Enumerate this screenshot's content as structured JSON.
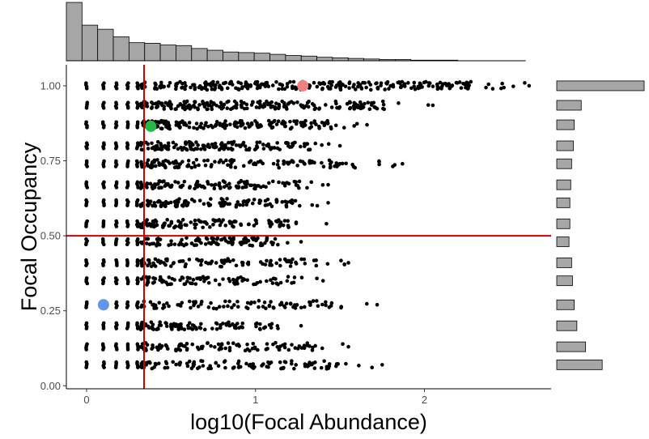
{
  "chart_data": {
    "type": "scatter",
    "title": "",
    "xlabel": "log10(Focal Abundance)",
    "ylabel": "Focal Occupancy",
    "xlim": [
      -0.12,
      2.75
    ],
    "ylim": [
      -0.01,
      1.07
    ],
    "x_ticks": [
      {
        "value": 0,
        "label": "0"
      },
      {
        "value": 1,
        "label": "1"
      },
      {
        "value": 2,
        "label": "2"
      }
    ],
    "y_ticks": [
      {
        "value": 0.0,
        "label": "0.00"
      },
      {
        "value": 0.25,
        "label": "0.25"
      },
      {
        "value": 0.5,
        "label": "0.50"
      },
      {
        "value": 0.75,
        "label": "0.75"
      },
      {
        "value": 1.0,
        "label": "1.00"
      }
    ],
    "grid": false,
    "reference_lines": [
      {
        "orientation": "vertical",
        "x": 0.34,
        "color": "#cc0000"
      },
      {
        "orientation": "horizontal",
        "y": 0.5,
        "color": "#cc0000"
      }
    ],
    "point_bands": [
      {
        "y": 1.0,
        "x_min": 0.0,
        "x_max": 2.62,
        "density": 1.0
      },
      {
        "y": 0.935,
        "x_min": 0.0,
        "x_max": 2.05,
        "density": 0.75
      },
      {
        "y": 0.87,
        "x_min": 0.0,
        "x_max": 1.66,
        "density": 0.6
      },
      {
        "y": 0.8,
        "x_min": 0.0,
        "x_max": 1.5,
        "density": 0.5
      },
      {
        "y": 0.74,
        "x_min": 0.0,
        "x_max": 1.87,
        "density": 0.48
      },
      {
        "y": 0.67,
        "x_min": 0.0,
        "x_max": 1.43,
        "density": 0.42
      },
      {
        "y": 0.61,
        "x_min": 0.0,
        "x_max": 1.43,
        "density": 0.4
      },
      {
        "y": 0.54,
        "x_min": 0.0,
        "x_max": 1.42,
        "density": 0.38
      },
      {
        "y": 0.48,
        "x_min": 0.0,
        "x_max": 1.27,
        "density": 0.35
      },
      {
        "y": 0.41,
        "x_min": 0.0,
        "x_max": 1.55,
        "density": 0.33
      },
      {
        "y": 0.35,
        "x_min": 0.0,
        "x_max": 1.4,
        "density": 0.32
      },
      {
        "y": 0.27,
        "x_min": 0.0,
        "x_max": 1.72,
        "density": 0.32
      },
      {
        "y": 0.2,
        "x_min": 0.0,
        "x_max": 1.27,
        "density": 0.33
      },
      {
        "y": 0.13,
        "x_min": 0.0,
        "x_max": 1.55,
        "density": 0.35
      },
      {
        "y": 0.07,
        "x_min": 0.0,
        "x_max": 1.75,
        "density": 0.38
      }
    ],
    "highlight_points": [
      {
        "x": 1.28,
        "y": 1.0,
        "color": "#f08080"
      },
      {
        "x": 0.38,
        "y": 0.865,
        "color": "#22bb44"
      },
      {
        "x": 0.1,
        "y": 0.27,
        "color": "#6495ed"
      }
    ],
    "x_histogram": {
      "bin_start": -0.12,
      "bin_width": 0.0927,
      "counts": [
        100,
        61,
        54,
        41,
        31,
        30,
        27,
        26,
        21,
        18,
        15,
        14,
        13,
        11,
        9,
        8,
        6,
        5,
        4,
        3,
        2,
        2,
        1,
        1,
        1
      ],
      "fill": "#a6a6a6"
    },
    "y_histogram": {
      "bins": [
        {
          "y": 1.0,
          "count": 100
        },
        {
          "y": 0.935,
          "count": 28
        },
        {
          "y": 0.87,
          "count": 20
        },
        {
          "y": 0.8,
          "count": 19
        },
        {
          "y": 0.74,
          "count": 17
        },
        {
          "y": 0.67,
          "count": 16
        },
        {
          "y": 0.61,
          "count": 15
        },
        {
          "y": 0.54,
          "count": 15
        },
        {
          "y": 0.48,
          "count": 14
        },
        {
          "y": 0.41,
          "count": 17
        },
        {
          "y": 0.35,
          "count": 18
        },
        {
          "y": 0.27,
          "count": 20
        },
        {
          "y": 0.2,
          "count": 23
        },
        {
          "y": 0.13,
          "count": 33
        },
        {
          "y": 0.07,
          "count": 52
        }
      ],
      "fill": "#a6a6a6"
    }
  }
}
